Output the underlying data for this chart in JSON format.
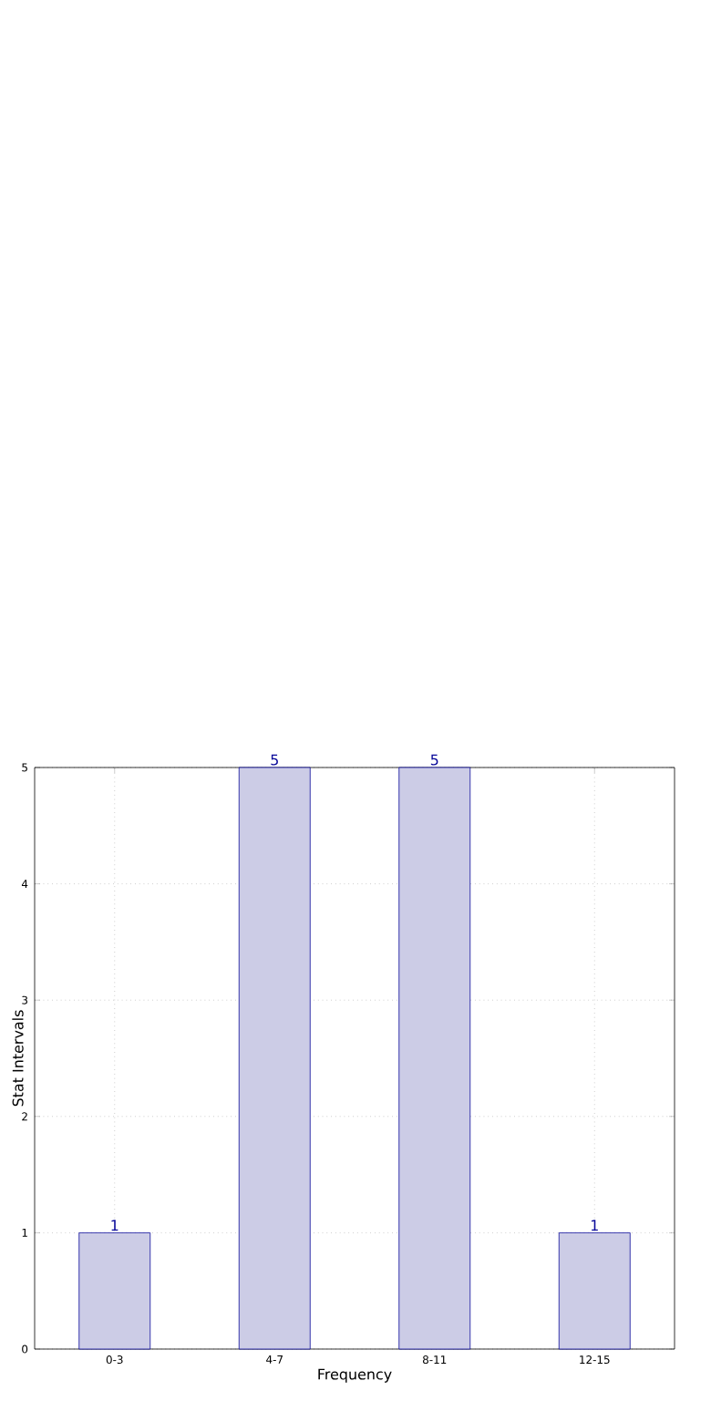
{
  "chart_data": {
    "type": "bar",
    "xlabel": "Frequency",
    "ylabel": "Stat Intervals",
    "categories": [
      "0-3",
      "4-7",
      "8-11",
      "12-15"
    ],
    "values": [
      1,
      5,
      5,
      1
    ],
    "color": "#ccccE6",
    "ylim": [
      0,
      5
    ],
    "yticks": [
      0,
      1,
      2,
      3,
      4,
      5
    ],
    "grid": true,
    "data_labels": true
  }
}
